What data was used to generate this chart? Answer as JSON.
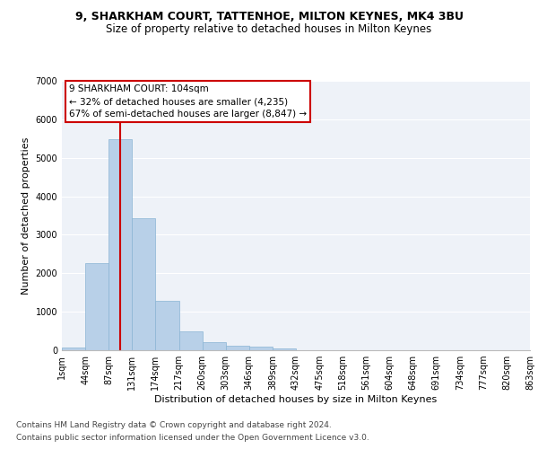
{
  "title_line1": "9, SHARKHAM COURT, TATTENHOE, MILTON KEYNES, MK4 3BU",
  "title_line2": "Size of property relative to detached houses in Milton Keynes",
  "xlabel": "Distribution of detached houses by size in Milton Keynes",
  "ylabel": "Number of detached properties",
  "bin_labels": [
    "1sqm",
    "44sqm",
    "87sqm",
    "131sqm",
    "174sqm",
    "217sqm",
    "260sqm",
    "303sqm",
    "346sqm",
    "389sqm",
    "432sqm",
    "475sqm",
    "518sqm",
    "561sqm",
    "604sqm",
    "648sqm",
    "691sqm",
    "734sqm",
    "777sqm",
    "820sqm",
    "863sqm"
  ],
  "bar_values": [
    70,
    2270,
    5480,
    3420,
    1290,
    490,
    210,
    115,
    85,
    55,
    0,
    0,
    0,
    0,
    0,
    0,
    0,
    0,
    0,
    0
  ],
  "bar_color": "#b8d0e8",
  "bar_edge_color": "#8ab4d4",
  "vline_color": "#cc0000",
  "annotation_text": "9 SHARKHAM COURT: 104sqm\n← 32% of detached houses are smaller (4,235)\n67% of semi-detached houses are larger (8,847) →",
  "annotation_box_color": "#ffffff",
  "annotation_box_edgecolor": "#cc0000",
  "ylim": [
    0,
    7000
  ],
  "yticks": [
    0,
    1000,
    2000,
    3000,
    4000,
    5000,
    6000,
    7000
  ],
  "background_color": "#eef2f8",
  "grid_color": "#ffffff",
  "fig_background": "#ffffff",
  "footer_line1": "Contains HM Land Registry data © Crown copyright and database right 2024.",
  "footer_line2": "Contains public sector information licensed under the Open Government Licence v3.0.",
  "title_fontsize": 9,
  "subtitle_fontsize": 8.5,
  "axis_label_fontsize": 8,
  "tick_fontsize": 7,
  "annotation_fontsize": 7.5,
  "footer_fontsize": 6.5,
  "vline_bin_index": 2
}
